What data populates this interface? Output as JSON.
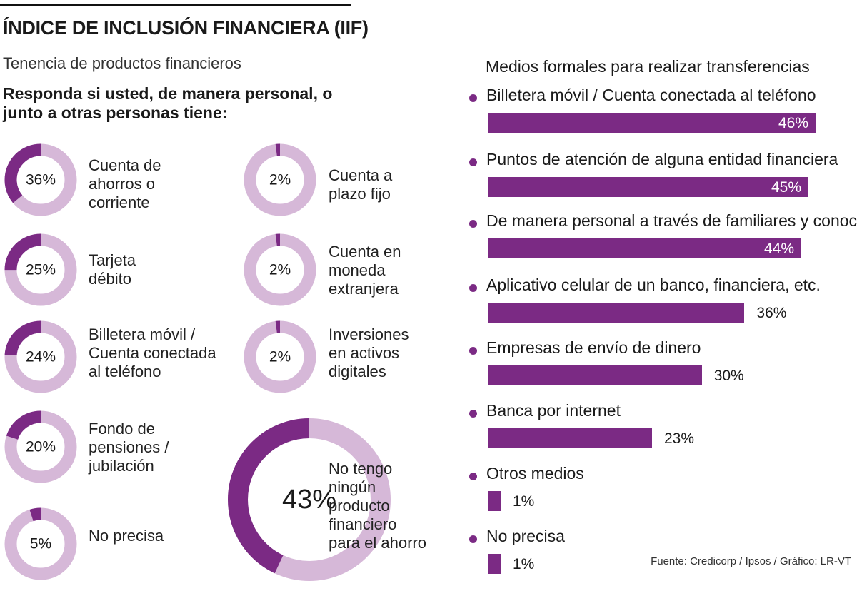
{
  "header": {
    "title": "ÍNDICE DE INCLUSIÓN FINANCIERA (IIF)",
    "subtitle": "Tenencia de productos financieros",
    "question": "Responda si usted, de manera personal, o junto a otras personas tiene:"
  },
  "colors": {
    "accent": "#7b2a84",
    "light": "#d6b8d8",
    "bar": "#7b2a84"
  },
  "chart_data": [
    {
      "type": "pie",
      "title": "Tenencia de productos financieros",
      "items": [
        {
          "label": "Cuenta de\nahorros o\ncorriente",
          "value": 36,
          "display": "36%"
        },
        {
          "label": "Tarjeta\ndébito",
          "value": 25,
          "display": "25%"
        },
        {
          "label": "Billetera móvil /\nCuenta conectada\nal teléfono",
          "value": 24,
          "display": "24%"
        },
        {
          "label": "Fondo de\npensiones /\njubilación",
          "value": 20,
          "display": "20%"
        },
        {
          "label": "No precisa",
          "value": 5,
          "display": "5%"
        },
        {
          "label": "Cuenta a\nplazo fijo",
          "value": 2,
          "display": "2%"
        },
        {
          "label": "Cuenta en\nmoneda\nextranjera",
          "value": 2,
          "display": "2%"
        },
        {
          "label": "Inversiones\nen activos\ndigitales",
          "value": 2,
          "display": "2%"
        },
        {
          "label": "No tengo\nningún\nproducto\nfinanciero\npara el ahorro",
          "value": 43,
          "display": "43%"
        }
      ]
    },
    {
      "type": "bar",
      "title": "Medios formales para realizar transferencias",
      "categories": [
        "Billetera móvil / Cuenta conectada al teléfono",
        "Puntos de atención de alguna entidad financiera",
        "De manera personal a través de familiares y conocidos",
        "Aplicativo celular de un banco, financiera, etc.",
        "Empresas de envío de dinero",
        "Banca por internet",
        "Otros medios",
        "No precisa"
      ],
      "values": [
        46,
        45,
        44,
        36,
        30,
        23,
        1,
        1
      ],
      "labels": [
        "46%",
        "45%",
        "44%",
        "36%",
        "30%",
        "23%",
        "1%",
        "1%"
      ]
    }
  ],
  "source": "Fuente: Credicorp / Ipsos / Gráfico: LR-VT"
}
